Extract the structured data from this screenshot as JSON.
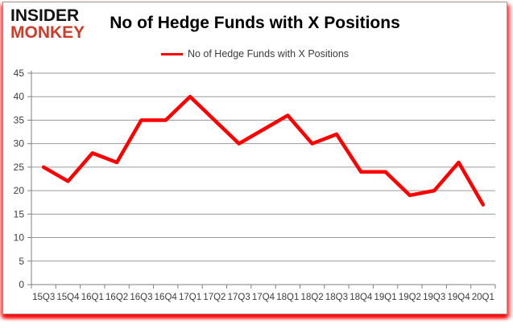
{
  "logo": {
    "line1": "INSIDER",
    "line2": "MONKEY"
  },
  "header": {
    "title": "No of Hedge Funds with X Positions"
  },
  "legend": {
    "label": "No of Hedge Funds with X Positions",
    "swatch_color": "#ff0000"
  },
  "chart_data": {
    "type": "line",
    "title": "No of Hedge Funds with X Positions",
    "categories": [
      "15Q3",
      "15Q4",
      "16Q1",
      "16Q2",
      "16Q3",
      "16Q4",
      "17Q1",
      "17Q2",
      "17Q3",
      "17Q4",
      "18Q1",
      "18Q2",
      "18Q3",
      "18Q4",
      "19Q1",
      "19Q2",
      "19Q3",
      "19Q4",
      "20Q1"
    ],
    "series": [
      {
        "name": "No of Hedge Funds with X Positions",
        "color": "#ff0000",
        "values": [
          25,
          22,
          28,
          26,
          35,
          35,
          40,
          35,
          30,
          33,
          36,
          30,
          32,
          24,
          24,
          19,
          20,
          26,
          17
        ]
      }
    ],
    "xlabel": "",
    "ylabel": "",
    "ylim": [
      0,
      45
    ],
    "ytick_step": 5,
    "grid": true,
    "legend_position": "top"
  },
  "colors": {
    "line_red": "#ff0000",
    "logo_red": "#cf3c2c",
    "grid": "#9a9a9a",
    "axis": "#808080",
    "tick_text": "#3d3d3d",
    "card_border": "#999999",
    "glow": "#ff0000"
  }
}
